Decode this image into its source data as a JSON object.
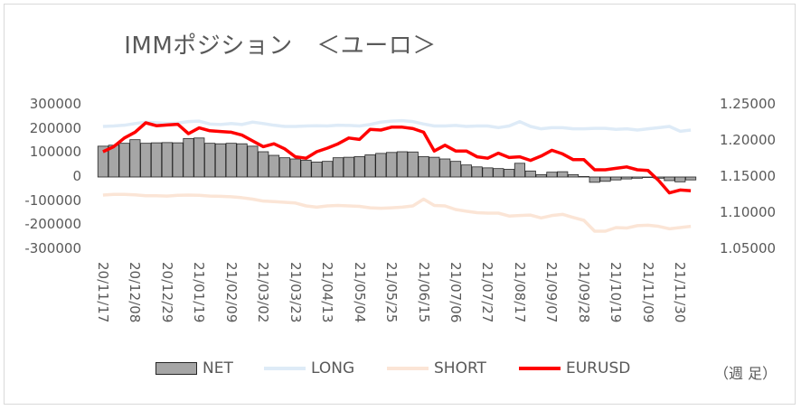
{
  "chart_data": {
    "type": "bar+line",
    "title": "IMMポジション　＜ユーロ＞",
    "categories": [
      "20/11/17",
      "20/11/24",
      "20/12/01",
      "20/12/08",
      "20/12/15",
      "20/12/22",
      "20/12/29",
      "21/01/05",
      "21/01/12",
      "21/01/19",
      "21/01/26",
      "21/02/02",
      "21/02/09",
      "21/02/16",
      "21/02/23",
      "21/03/02",
      "21/03/09",
      "21/03/16",
      "21/03/23",
      "21/03/30",
      "21/04/06",
      "21/04/13",
      "21/04/20",
      "21/04/27",
      "21/05/04",
      "21/05/11",
      "21/05/18",
      "21/05/25",
      "21/06/01",
      "21/06/08",
      "21/06/15",
      "21/06/22",
      "21/06/29",
      "21/07/06",
      "21/07/13",
      "21/07/20",
      "21/07/27",
      "21/08/03",
      "21/08/10",
      "21/08/17",
      "21/08/24",
      "21/08/31",
      "21/09/07",
      "21/09/14",
      "21/09/21",
      "21/09/28",
      "21/10/05",
      "21/10/12",
      "21/10/19",
      "21/10/26",
      "21/11/02",
      "21/11/09",
      "21/11/16",
      "21/11/23",
      "21/11/30",
      "21/12/07"
    ],
    "x_tick_labels": [
      "20/11/17",
      "20/12/08",
      "20/12/29",
      "21/01/19",
      "21/02/09",
      "21/03/02",
      "21/03/23",
      "21/04/13",
      "21/05/04",
      "21/05/25",
      "21/06/15",
      "21/07/06",
      "21/07/27",
      "21/08/17",
      "21/09/07",
      "21/09/28",
      "21/10/19",
      "21/11/09",
      "21/11/30"
    ],
    "y_left": {
      "lim": [
        -300000,
        300000
      ],
      "ticks": [
        "300000",
        "200000",
        "100000",
        "0",
        "-100000",
        "-200000",
        "-300000"
      ]
    },
    "y_right": {
      "lim": [
        1.05,
        1.25
      ],
      "ticks": [
        "1.25000",
        "1.20000",
        "1.15000",
        "1.10000",
        "1.05000"
      ]
    },
    "series": [
      {
        "name": "NET",
        "type": "bar",
        "axis": "left",
        "color": "#a6a6a6",
        "values": [
          128000,
          132000,
          140000,
          155000,
          140000,
          142000,
          143000,
          142000,
          160000,
          162000,
          140000,
          138000,
          140000,
          138000,
          128000,
          105000,
          90000,
          80000,
          75000,
          70000,
          62000,
          65000,
          80000,
          82000,
          85000,
          92000,
          98000,
          102000,
          105000,
          104000,
          85000,
          82000,
          75000,
          65000,
          50000,
          42000,
          38000,
          35000,
          32000,
          57000,
          25000,
          10000,
          20000,
          22000,
          10000,
          2000,
          -22000,
          -18000,
          -12000,
          -8000,
          -5000,
          -2000,
          -5000,
          -15000,
          -20000,
          -12000
        ]
      },
      {
        "name": "LONG",
        "type": "line",
        "axis": "left",
        "color": "#deebf7",
        "values": [
          210000,
          212000,
          215000,
          222000,
          228000,
          225000,
          222000,
          224000,
          230000,
          232000,
          220000,
          218000,
          222000,
          218000,
          228000,
          222000,
          215000,
          210000,
          210000,
          212000,
          213000,
          212000,
          215000,
          214000,
          212000,
          218000,
          228000,
          232000,
          234000,
          230000,
          220000,
          212000,
          212000,
          214000,
          210000,
          212000,
          212000,
          205000,
          212000,
          230000,
          210000,
          200000,
          205000,
          205000,
          200000,
          200000,
          202000,
          202000,
          198000,
          200000,
          195000,
          200000,
          205000,
          210000,
          190000,
          195000
        ]
      },
      {
        "name": "SHORT",
        "type": "line",
        "axis": "left",
        "color": "#fbe5d6",
        "values": [
          -75000,
          -72000,
          -72000,
          -74000,
          -78000,
          -78000,
          -79000,
          -76000,
          -75000,
          -76000,
          -79000,
          -80000,
          -82000,
          -86000,
          -92000,
          -100000,
          -102000,
          -105000,
          -108000,
          -120000,
          -125000,
          -120000,
          -118000,
          -120000,
          -122000,
          -128000,
          -130000,
          -128000,
          -125000,
          -120000,
          -92000,
          -118000,
          -120000,
          -135000,
          -142000,
          -148000,
          -150000,
          -150000,
          -162000,
          -160000,
          -158000,
          -170000,
          -160000,
          -155000,
          -168000,
          -180000,
          -225000,
          -225000,
          -210000,
          -212000,
          -202000,
          -200000,
          -205000,
          -215000,
          -210000,
          -205000
        ]
      },
      {
        "name": "EURUSD",
        "type": "line",
        "axis": "right",
        "color": "#ff0000",
        "values": [
          1.185,
          1.192,
          1.204,
          1.212,
          1.225,
          1.221,
          1.222,
          1.223,
          1.21,
          1.218,
          1.214,
          1.213,
          1.212,
          1.208,
          1.2,
          1.192,
          1.196,
          1.189,
          1.178,
          1.176,
          1.185,
          1.19,
          1.196,
          1.204,
          1.202,
          1.216,
          1.215,
          1.219,
          1.219,
          1.217,
          1.212,
          1.186,
          1.194,
          1.186,
          1.186,
          1.178,
          1.176,
          1.183,
          1.177,
          1.178,
          1.173,
          1.179,
          1.187,
          1.182,
          1.174,
          1.174,
          1.16,
          1.16,
          1.162,
          1.164,
          1.16,
          1.159,
          1.145,
          1.128,
          1.132,
          1.131
        ]
      }
    ],
    "legend": {
      "position": "bottom",
      "entries": [
        "NET",
        "LONG",
        "SHORT",
        "EURUSD"
      ]
    },
    "note": "（週 足）",
    "grid": false
  }
}
